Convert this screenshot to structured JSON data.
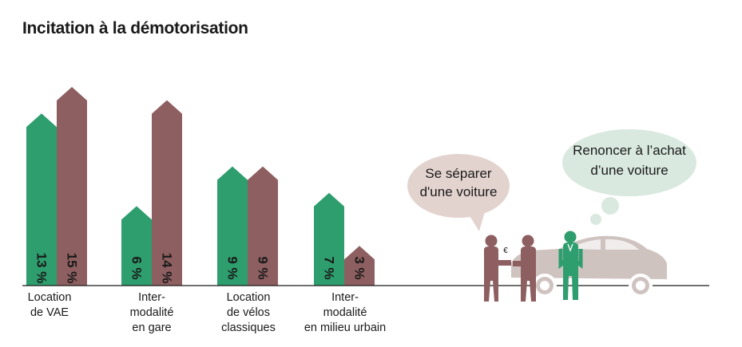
{
  "title": "Incitation à la démotorisation",
  "colors": {
    "green": "#2e9e6e",
    "mauve": "#8e5f60",
    "bubble_pink": "#e3d3cf",
    "bubble_green": "#d9e9df",
    "car": "#cfc3c0",
    "people": "#8e5f60",
    "axis": "#1a1a1a"
  },
  "chart_data": {
    "type": "bar",
    "categories": [
      "Location\nde VAE",
      "Inter-\nmodalité\nen gare",
      "Location\nde vélos\nclassiques",
      "Inter-\nmodalité\nen milieu urbain"
    ],
    "series": [
      {
        "values": [
          13,
          6,
          9,
          7
        ],
        "labels": [
          "13 %",
          "6 %",
          "9 %",
          "7 %"
        ],
        "color": "#2e9e6e"
      },
      {
        "values": [
          15,
          14,
          9,
          3
        ],
        "labels": [
          "15 %",
          "14 %",
          "9 %",
          "3 %"
        ],
        "color": "#8e5f60"
      }
    ],
    "ylim": [
      0,
      16
    ]
  },
  "bubbles": {
    "left": [
      "Se séparer",
      "d'une voiture"
    ],
    "right": [
      "Renoncer à l’achat",
      "d’une voiture"
    ]
  },
  "icons": {
    "euro": "€"
  }
}
